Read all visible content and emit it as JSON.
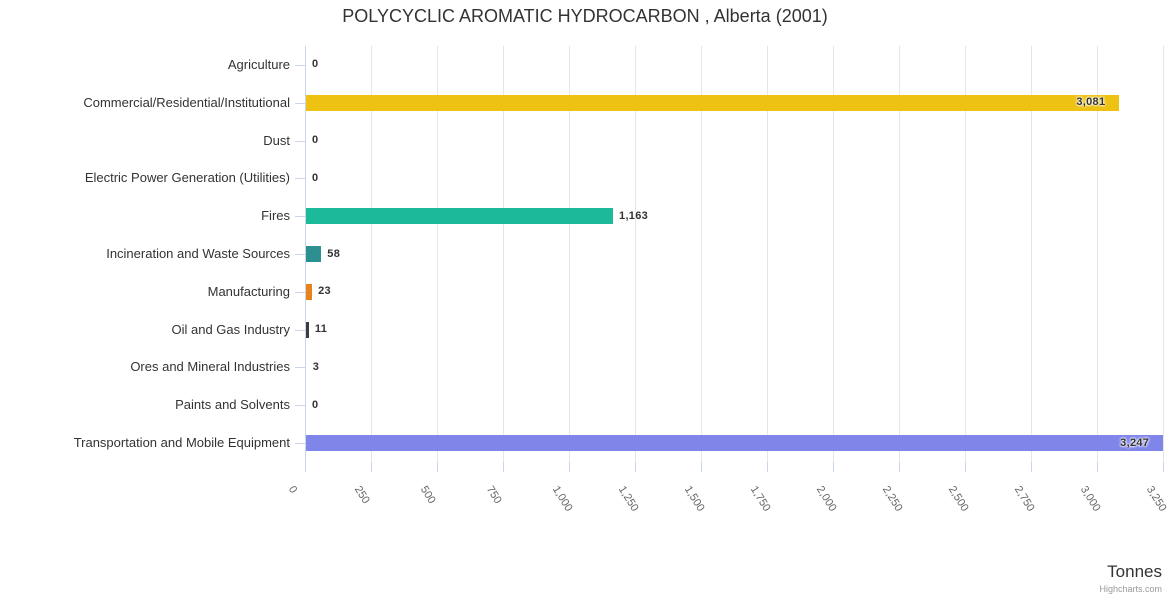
{
  "title": "POLYCYCLIC AROMATIC HYDROCARBON , Alberta (2001)",
  "chart_data": {
    "type": "bar",
    "title": "POLYCYCLIC AROMATIC HYDROCARBON , Alberta (2001)",
    "categories": [
      "Agriculture",
      "Commercial/Residential/Institutional",
      "Dust",
      "Electric Power Generation (Utilities)",
      "Fires",
      "Incineration and Waste Sources",
      "Manufacturing",
      "Oil and Gas Industry",
      "Ores and Mineral Industries",
      "Paints and Solvents",
      "Transportation and Mobile Equipment"
    ],
    "values": [
      0,
      3081,
      0,
      0,
      1163,
      58,
      23,
      11,
      3,
      0,
      3247
    ],
    "value_labels": [
      "0",
      "3,081",
      "0",
      "0",
      "1,163",
      "58",
      "23",
      "11",
      "3",
      "0",
      "3,247"
    ],
    "colors": [
      null,
      "#edc213",
      null,
      null,
      "#1cba9a",
      "#2b908f",
      "#e8821c",
      "#3b3b40",
      null,
      null,
      "#8085e9"
    ],
    "xlabel": "Tonnes",
    "ylabel": "",
    "xlim": [
      0,
      3250
    ],
    "xtick_labels": [
      "0",
      "250",
      "500",
      "750",
      "1,000",
      "1,250",
      "1,500",
      "1,750",
      "2,000",
      "2,250",
      "2,500",
      "2,750",
      "3,000",
      "3,250"
    ],
    "grid": true,
    "legend": false
  },
  "credits": "Highcharts.com",
  "ui_colors": {
    "grid": "#e6e6e6",
    "axis_line": "#ccd6eb",
    "category_label": "#333333",
    "tick_label": "#666666",
    "data_label": "#333333",
    "credits_text": "#999999"
  }
}
